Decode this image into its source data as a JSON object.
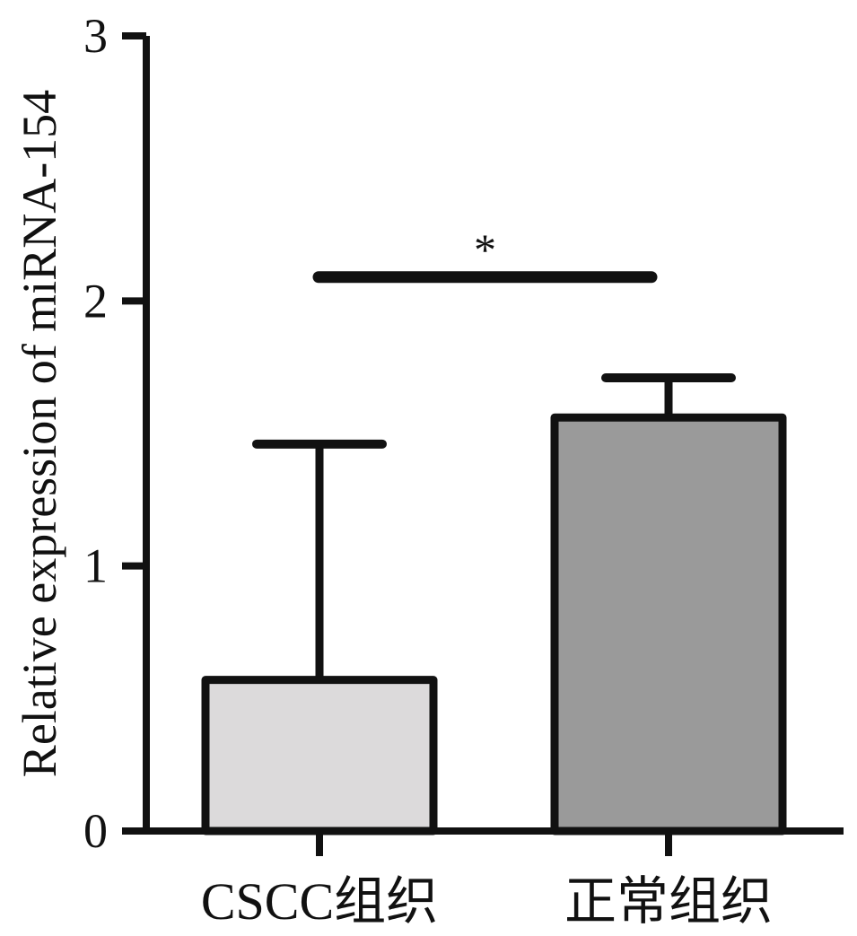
{
  "chart_data": {
    "type": "bar",
    "title": "",
    "xlabel": "",
    "ylabel": "Relative expression of miRNA-154",
    "ylim": [
      0,
      3
    ],
    "yticks": [
      0,
      1,
      2,
      3
    ],
    "ytick_labels": [
      "0",
      "1",
      "2",
      "3"
    ],
    "categories": [
      "CSCC组织",
      "正常组织"
    ],
    "values": [
      0.57,
      1.56
    ],
    "error_upper": [
      1.46,
      1.71
    ],
    "bar_colors": [
      "#dcdadb",
      "#9a9a9a"
    ],
    "grid": false,
    "legend": "none",
    "significance": {
      "label": "*",
      "between": [
        0,
        1
      ],
      "y": 2.09
    }
  }
}
